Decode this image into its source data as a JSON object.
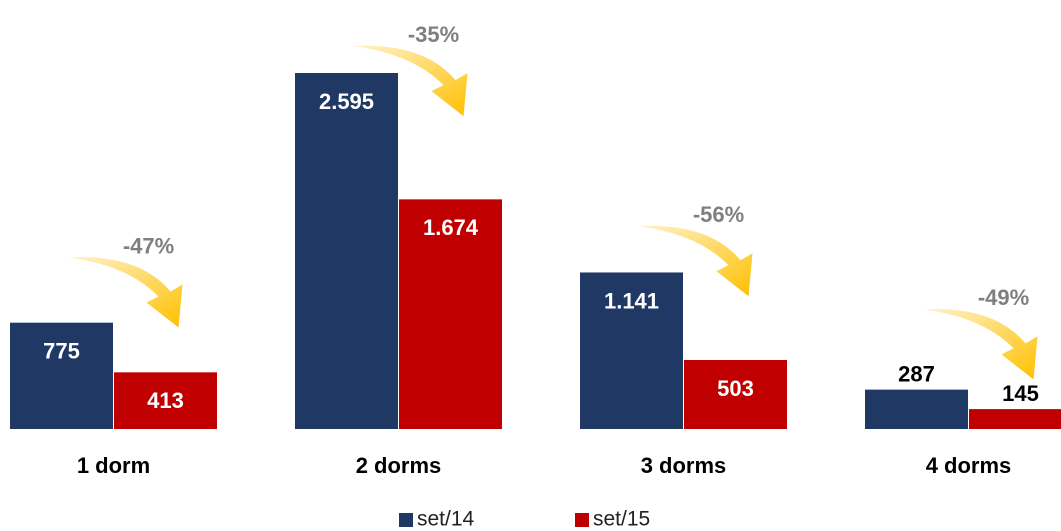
{
  "chart_data": {
    "type": "bar",
    "categories": [
      "1 dorm",
      "2 dorms",
      "3 dorms",
      "4 dorms"
    ],
    "series": [
      {
        "name": "set/14",
        "color": "#1f3864",
        "values": [
          775,
          2595,
          1141,
          287
        ],
        "value_labels": [
          "775",
          "2.595",
          "1.141",
          "287"
        ]
      },
      {
        "name": "set/15",
        "color": "#c00000",
        "values": [
          413,
          1674,
          503,
          145
        ],
        "value_labels": [
          "413",
          "1.674",
          "503",
          "145"
        ]
      }
    ],
    "annotations": [
      "-47%",
      "-35%",
      "-56%",
      "-49%"
    ]
  }
}
